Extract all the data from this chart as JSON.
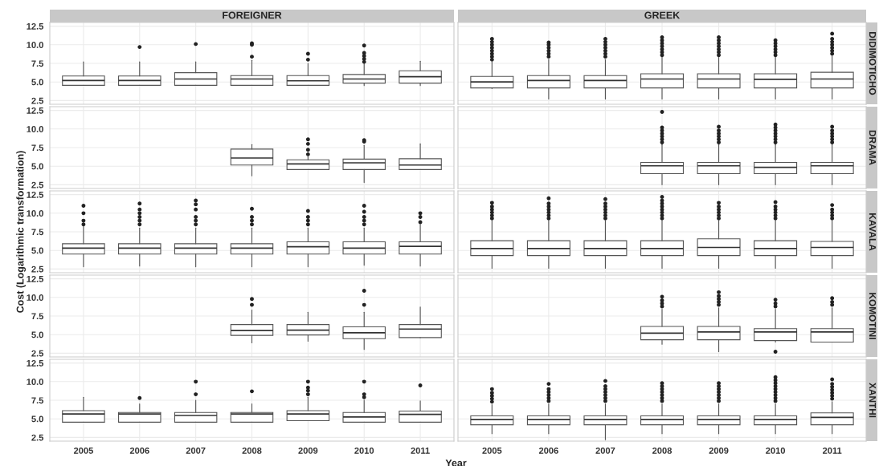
{
  "chart_data": [
    {
      "type": "box",
      "title": "FOREIGNER",
      "categories": [
        "2005",
        "2006",
        "2007",
        "2008",
        "2009",
        "2010",
        "2011"
      ],
      "ylim": [
        2.0,
        13.0
      ],
      "yticks": [
        {
          "value": 2.5,
          "label": "2.5"
        },
        {
          "value": 5,
          "label": "5.0"
        },
        {
          "value": 7.5,
          "label": "7.5"
        },
        {
          "value": 10,
          "label": "10.0"
        },
        {
          "value": 12.5,
          "label": "12.5"
        }
      ],
      "grid": true,
      "tick_labels": "y",
      "boxes": [
        {
          "low": 4.55,
          "q1": 4.55,
          "median": 5.2,
          "q3": 5.8,
          "high": 7.7
        },
        {
          "low": 4.55,
          "q1": 4.55,
          "median": 5.2,
          "q3": 5.8,
          "high": 7.7,
          "outliers": [
            9.7
          ]
        },
        {
          "low": 4.55,
          "q1": 4.55,
          "median": 5.4,
          "q3": 6.25,
          "high": 7.7,
          "outliers": [
            10.1
          ]
        },
        {
          "low": 4.55,
          "q1": 4.55,
          "median": 5.4,
          "q3": 5.85,
          "high": 7.9,
          "outliers": [
            8.4,
            10.0,
            10.2
          ]
        },
        {
          "low": 4.55,
          "q1": 4.55,
          "median": 5.15,
          "q3": 5.85,
          "high": 7.5,
          "outliers": [
            8.0,
            8.8
          ]
        },
        {
          "low": 4.5,
          "q1": 4.85,
          "median": 5.4,
          "q3": 6.0,
          "high": 7.5,
          "outliers": [
            7.7,
            8.1,
            8.5,
            8.9,
            9.9
          ]
        },
        {
          "low": 4.5,
          "q1": 4.85,
          "median": 5.7,
          "q3": 6.5,
          "high": 7.8
        }
      ]
    },
    {
      "type": "box",
      "title": "GREEK",
      "y2label": "DIDIMOTICHO",
      "categories": [
        "2005",
        "2006",
        "2007",
        "2008",
        "2009",
        "2010",
        "2011"
      ],
      "ylim": [
        2.0,
        13.0
      ],
      "yticks": [
        {
          "value": 2.5,
          "label": null
        },
        {
          "value": 5,
          "label": null
        },
        {
          "value": 7.5,
          "label": null
        },
        {
          "value": 10,
          "label": null
        },
        {
          "value": 12.5,
          "label": null
        }
      ],
      "grid": true,
      "tick_labels": false,
      "boxes": [
        {
          "low": 4.1,
          "q1": 4.2,
          "median": 5.0,
          "q3": 5.75,
          "high": 7.7,
          "outliers": [
            8.0,
            8.4,
            8.8,
            9.2,
            9.6,
            10.0,
            10.4,
            10.8
          ]
        },
        {
          "low": 2.7,
          "q1": 4.2,
          "median": 5.2,
          "q3": 5.85,
          "high": 8.0,
          "outliers": [
            8.4,
            8.8,
            9.2,
            9.6,
            10.0,
            10.3
          ]
        },
        {
          "low": 2.7,
          "q1": 4.2,
          "median": 5.2,
          "q3": 5.85,
          "high": 8.0,
          "outliers": [
            8.4,
            8.8,
            9.2,
            9.6,
            10.0,
            10.4,
            10.8
          ]
        },
        {
          "low": 2.7,
          "q1": 4.2,
          "median": 5.4,
          "q3": 6.1,
          "high": 8.3,
          "outliers": [
            8.6,
            9.0,
            9.4,
            9.8,
            10.2,
            10.6,
            11.0
          ]
        },
        {
          "low": 2.7,
          "q1": 4.2,
          "median": 5.4,
          "q3": 6.1,
          "high": 8.3,
          "outliers": [
            8.6,
            9.0,
            9.4,
            9.8,
            10.2,
            10.6,
            11.0
          ]
        },
        {
          "low": 2.7,
          "q1": 4.2,
          "median": 5.35,
          "q3": 6.1,
          "high": 8.3,
          "outliers": [
            8.6,
            9.0,
            9.4,
            9.8,
            10.2,
            10.6
          ]
        },
        {
          "low": 2.7,
          "q1": 4.2,
          "median": 5.4,
          "q3": 6.3,
          "high": 8.5,
          "outliers": [
            8.8,
            9.2,
            9.6,
            10.0,
            10.4,
            10.8,
            11.5
          ]
        }
      ]
    },
    {
      "type": "box",
      "categories": [
        "2005",
        "2006",
        "2007",
        "2008",
        "2009",
        "2010",
        "2011"
      ],
      "ylim": [
        2.0,
        13.0
      ],
      "yticks": [
        {
          "value": 2.5,
          "label": "2.5"
        },
        {
          "value": 5,
          "label": "5.0"
        },
        {
          "value": 7.5,
          "label": "7.5"
        },
        {
          "value": 10,
          "label": "10.0"
        },
        {
          "value": 12.5,
          "label": "12.5"
        }
      ],
      "grid": true,
      "tick_labels": "y",
      "boxes": [
        null,
        null,
        null,
        {
          "low": 3.7,
          "q1": 5.15,
          "median": 6.1,
          "q3": 7.3,
          "high": 7.9
        },
        {
          "low": 4.55,
          "q1": 4.55,
          "median": 5.3,
          "q3": 5.85,
          "high": 6.3,
          "outliers": [
            6.6,
            7.2,
            8.0,
            8.6
          ]
        },
        {
          "low": 2.8,
          "q1": 4.55,
          "median": 5.45,
          "q3": 5.95,
          "high": 7.8,
          "outliers": [
            8.3,
            8.5
          ]
        },
        {
          "low": 4.55,
          "q1": 4.55,
          "median": 5.15,
          "q3": 6.0,
          "high": 8.0
        }
      ]
    },
    {
      "type": "box",
      "y2label": "DRAMA",
      "categories": [
        "2005",
        "2006",
        "2007",
        "2008",
        "2009",
        "2010",
        "2011"
      ],
      "ylim": [
        2.0,
        13.0
      ],
      "yticks": [
        {
          "value": 2.5,
          "label": null
        },
        {
          "value": 5,
          "label": null
        },
        {
          "value": 7.5,
          "label": null
        },
        {
          "value": 10,
          "label": null
        },
        {
          "value": 12.5,
          "label": null
        }
      ],
      "grid": true,
      "tick_labels": false,
      "boxes": [
        null,
        null,
        null,
        {
          "low": 2.5,
          "q1": 4.0,
          "median": 5.05,
          "q3": 5.5,
          "high": 7.9,
          "outliers": [
            8.2,
            8.6,
            9.0,
            9.4,
            9.8,
            10.2,
            12.3
          ]
        },
        {
          "low": 2.5,
          "q1": 4.0,
          "median": 5.05,
          "q3": 5.5,
          "high": 7.9,
          "outliers": [
            8.2,
            8.6,
            9.0,
            9.4,
            9.8,
            10.3
          ]
        },
        {
          "low": 2.5,
          "q1": 4.0,
          "median": 4.85,
          "q3": 5.5,
          "high": 7.9,
          "outliers": [
            8.2,
            8.6,
            9.0,
            9.4,
            9.8,
            10.2,
            10.6
          ]
        },
        {
          "low": 2.5,
          "q1": 4.0,
          "median": 5.05,
          "q3": 5.5,
          "high": 7.9,
          "outliers": [
            8.2,
            8.6,
            9.0,
            9.4,
            9.8,
            10.3
          ]
        }
      ]
    },
    {
      "type": "box",
      "ylabel": "Cost (Logarithmic transformation)",
      "categories": [
        "2005",
        "2006",
        "2007",
        "2008",
        "2009",
        "2010",
        "2011"
      ],
      "ylim": [
        2.0,
        13.0
      ],
      "yticks": [
        {
          "value": 2.5,
          "label": "2.5"
        },
        {
          "value": 5,
          "label": "5.0"
        },
        {
          "value": 7.5,
          "label": "7.5"
        },
        {
          "value": 10,
          "label": "10.0"
        },
        {
          "value": 12.5,
          "label": "12.5"
        }
      ],
      "grid": true,
      "tick_labels": "y",
      "boxes": [
        {
          "low": 2.8,
          "q1": 4.5,
          "median": 5.3,
          "q3": 5.9,
          "high": 8.2,
          "outliers": [
            8.5,
            9.0,
            10.0,
            11.0
          ]
        },
        {
          "low": 2.9,
          "q1": 4.5,
          "median": 5.3,
          "q3": 5.9,
          "high": 8.0,
          "outliers": [
            8.5,
            9.0,
            9.5,
            10.0,
            10.5,
            11.3
          ]
        },
        {
          "low": 2.8,
          "q1": 4.5,
          "median": 5.3,
          "q3": 5.9,
          "high": 8.0,
          "outliers": [
            8.5,
            9.0,
            9.5,
            10.5,
            11.2,
            11.7
          ]
        },
        {
          "low": 2.8,
          "q1": 4.5,
          "median": 5.3,
          "q3": 5.9,
          "high": 8.0,
          "outliers": [
            8.5,
            9.0,
            9.5,
            10.6
          ]
        },
        {
          "low": 2.8,
          "q1": 4.5,
          "median": 5.5,
          "q3": 6.15,
          "high": 8.0,
          "outliers": [
            8.5,
            9.0,
            9.5,
            10.3
          ]
        },
        {
          "low": 3.0,
          "q1": 4.5,
          "median": 5.3,
          "q3": 6.15,
          "high": 8.0,
          "outliers": [
            8.5,
            9.0,
            9.5,
            10.2,
            11.0
          ]
        },
        {
          "low": 2.9,
          "q1": 4.5,
          "median": 5.55,
          "q3": 6.15,
          "high": 8.5,
          "outliers": [
            8.8,
            9.5,
            10.0
          ]
        }
      ]
    },
    {
      "type": "box",
      "y2label": "KAVALA",
      "categories": [
        "2005",
        "2006",
        "2007",
        "2008",
        "2009",
        "2010",
        "2011"
      ],
      "ylim": [
        2.0,
        13.0
      ],
      "yticks": [
        {
          "value": 2.5,
          "label": null
        },
        {
          "value": 5,
          "label": null
        },
        {
          "value": 7.5,
          "label": null
        },
        {
          "value": 10,
          "label": null
        },
        {
          "value": 12.5,
          "label": null
        }
      ],
      "grid": true,
      "tick_labels": false,
      "boxes": [
        {
          "low": 2.6,
          "q1": 4.3,
          "median": 5.25,
          "q3": 6.3,
          "high": 9.0,
          "outliers": [
            9.3,
            9.7,
            10.1,
            10.5,
            10.9,
            11.4
          ]
        },
        {
          "low": 2.6,
          "q1": 4.3,
          "median": 5.25,
          "q3": 6.3,
          "high": 9.0,
          "outliers": [
            9.3,
            9.7,
            10.1,
            10.5,
            10.9,
            11.3,
            12.0
          ]
        },
        {
          "low": 2.6,
          "q1": 4.3,
          "median": 5.25,
          "q3": 6.3,
          "high": 9.0,
          "outliers": [
            9.3,
            9.7,
            10.1,
            10.5,
            10.9,
            11.3,
            11.9
          ]
        },
        {
          "low": 2.6,
          "q1": 4.3,
          "median": 5.25,
          "q3": 6.3,
          "high": 9.0,
          "outliers": [
            9.3,
            9.7,
            10.1,
            10.5,
            10.9,
            11.3,
            11.7,
            12.2
          ]
        },
        {
          "low": 2.6,
          "q1": 4.3,
          "median": 5.4,
          "q3": 6.55,
          "high": 9.0,
          "outliers": [
            9.3,
            9.7,
            10.1,
            10.5,
            10.9,
            11.4
          ]
        },
        {
          "low": 2.6,
          "q1": 4.3,
          "median": 5.25,
          "q3": 6.3,
          "high": 9.0,
          "outliers": [
            9.3,
            9.7,
            10.1,
            10.5,
            10.9,
            11.5
          ]
        },
        {
          "low": 2.6,
          "q1": 4.3,
          "median": 5.4,
          "q3": 6.2,
          "high": 9.0,
          "outliers": [
            9.3,
            9.7,
            10.1,
            10.5,
            11.1
          ]
        }
      ]
    },
    {
      "type": "box",
      "categories": [
        "2005",
        "2006",
        "2007",
        "2008",
        "2009",
        "2010",
        "2011"
      ],
      "ylim": [
        2.0,
        13.0
      ],
      "yticks": [
        {
          "value": 2.5,
          "label": "2.5"
        },
        {
          "value": 5,
          "label": "5.0"
        },
        {
          "value": 7.5,
          "label": "7.5"
        },
        {
          "value": 10,
          "label": "10.0"
        },
        {
          "value": 12.5,
          "label": "12.5"
        }
      ],
      "grid": true,
      "tick_labels": "y",
      "boxes": [
        null,
        null,
        null,
        {
          "low": 3.9,
          "q1": 4.9,
          "median": 5.55,
          "q3": 6.35,
          "high": 8.3,
          "outliers": [
            9.0,
            9.8
          ]
        },
        {
          "low": 4.1,
          "q1": 4.95,
          "median": 5.6,
          "q3": 6.35,
          "high": 8.0
        },
        {
          "low": 3.0,
          "q1": 4.45,
          "median": 5.25,
          "q3": 6.05,
          "high": 8.0,
          "outliers": [
            9.0,
            10.9
          ]
        },
        {
          "low": 4.6,
          "q1": 4.6,
          "median": 5.75,
          "q3": 6.35,
          "high": 8.7
        }
      ]
    },
    {
      "type": "box",
      "y2label": "KOMOTINI",
      "categories": [
        "2005",
        "2006",
        "2007",
        "2008",
        "2009",
        "2010",
        "2011"
      ],
      "ylim": [
        2.0,
        13.0
      ],
      "yticks": [
        {
          "value": 2.5,
          "label": null
        },
        {
          "value": 5,
          "label": null
        },
        {
          "value": 7.5,
          "label": null
        },
        {
          "value": 10,
          "label": null
        },
        {
          "value": 12.5,
          "label": null
        }
      ],
      "grid": true,
      "tick_labels": false,
      "boxes": [
        null,
        null,
        null,
        {
          "low": 3.7,
          "q1": 4.3,
          "median": 5.2,
          "q3": 6.1,
          "high": 8.4,
          "outliers": [
            8.8,
            9.2,
            9.6,
            10.1
          ]
        },
        {
          "low": 2.7,
          "q1": 4.3,
          "median": 5.35,
          "q3": 6.1,
          "high": 8.6,
          "outliers": [
            9.0,
            9.4,
            9.8,
            10.2,
            10.7
          ]
        },
        {
          "low": 4.0,
          "q1": 4.2,
          "median": 5.35,
          "q3": 5.8,
          "high": 8.4,
          "outliers": [
            2.7,
            8.8,
            9.2,
            9.7
          ]
        },
        {
          "low": 4.0,
          "q1": 4.0,
          "median": 5.35,
          "q3": 5.8,
          "high": 8.6,
          "outliers": [
            9.0,
            9.4,
            9.9
          ]
        }
      ]
    },
    {
      "type": "box",
      "xlabel": "Year",
      "categories": [
        "2005",
        "2006",
        "2007",
        "2008",
        "2009",
        "2010",
        "2011"
      ],
      "ylim": [
        2.0,
        13.0
      ],
      "yticks": [
        {
          "value": 2.5,
          "label": "2.5"
        },
        {
          "value": 5,
          "label": "5.0"
        },
        {
          "value": 7.5,
          "label": "7.5"
        },
        {
          "value": 10,
          "label": "10.0"
        },
        {
          "value": 12.5,
          "label": "12.5"
        }
      ],
      "grid": true,
      "boxes": [
        {
          "low": 4.55,
          "q1": 4.55,
          "median": 5.65,
          "q3": 6.1,
          "high": 7.9
        },
        {
          "low": 4.55,
          "q1": 4.55,
          "median": 5.65,
          "q3": 5.85,
          "high": 7.0,
          "outliers": [
            7.8
          ]
        },
        {
          "low": 4.55,
          "q1": 4.55,
          "median": 5.45,
          "q3": 5.85,
          "high": 7.5,
          "outliers": [
            8.3,
            10.0
          ]
        },
        {
          "low": 4.55,
          "q1": 4.55,
          "median": 5.65,
          "q3": 5.85,
          "high": 7.0,
          "outliers": [
            8.7
          ]
        },
        {
          "low": 4.75,
          "q1": 4.75,
          "median": 5.65,
          "q3": 6.1,
          "high": 7.9,
          "outliers": [
            8.3,
            8.8,
            9.2,
            10.0
          ]
        },
        {
          "low": 4.55,
          "q1": 4.55,
          "median": 5.25,
          "q3": 5.85,
          "high": 7.5,
          "outliers": [
            7.9,
            8.3,
            10.0
          ]
        },
        {
          "low": 4.55,
          "q1": 4.55,
          "median": 5.6,
          "q3": 6.05,
          "high": 7.4,
          "outliers": [
            9.5
          ]
        }
      ]
    },
    {
      "type": "box",
      "y2label": "XANTHI",
      "categories": [
        "2005",
        "2006",
        "2007",
        "2008",
        "2009",
        "2010",
        "2011"
      ],
      "ylim": [
        2.0,
        13.0
      ],
      "yticks": [
        {
          "value": 2.5,
          "label": null
        },
        {
          "value": 5,
          "label": null
        },
        {
          "value": 7.5,
          "label": null
        },
        {
          "value": 10,
          "label": null
        },
        {
          "value": 12.5,
          "label": null
        }
      ],
      "grid": true,
      "tick_labels": "x",
      "boxes": [
        {
          "low": 3.0,
          "q1": 4.2,
          "median": 4.9,
          "q3": 5.4,
          "high": 6.9,
          "outliers": [
            7.3,
            7.7,
            8.1,
            8.5,
            9.0
          ]
        },
        {
          "low": 3.0,
          "q1": 4.2,
          "median": 4.9,
          "q3": 5.4,
          "high": 7.0,
          "outliers": [
            7.4,
            7.8,
            8.2,
            8.6,
            9.0,
            9.7
          ]
        },
        {
          "low": 2.2,
          "q1": 4.2,
          "median": 4.9,
          "q3": 5.4,
          "high": 7.0,
          "outliers": [
            7.4,
            7.8,
            8.2,
            8.6,
            9.0,
            9.4,
            10.1
          ]
        },
        {
          "low": 3.0,
          "q1": 4.2,
          "median": 4.9,
          "q3": 5.4,
          "high": 7.0,
          "outliers": [
            7.4,
            7.8,
            8.2,
            8.6,
            9.0,
            9.4,
            9.8
          ]
        },
        {
          "low": 3.0,
          "q1": 4.2,
          "median": 4.9,
          "q3": 5.4,
          "high": 7.0,
          "outliers": [
            7.4,
            7.8,
            8.2,
            8.6,
            9.0,
            9.4,
            9.8
          ]
        },
        {
          "low": 3.0,
          "q1": 4.2,
          "median": 4.9,
          "q3": 5.4,
          "high": 7.0,
          "outliers": [
            7.4,
            7.8,
            8.2,
            8.6,
            9.0,
            9.4,
            9.8,
            10.2,
            10.6
          ]
        },
        {
          "low": 3.0,
          "q1": 4.2,
          "median": 5.2,
          "q3": 5.8,
          "high": 7.3,
          "outliers": [
            7.7,
            8.1,
            8.5,
            8.9,
            9.3,
            9.7,
            10.3
          ]
        }
      ]
    }
  ]
}
